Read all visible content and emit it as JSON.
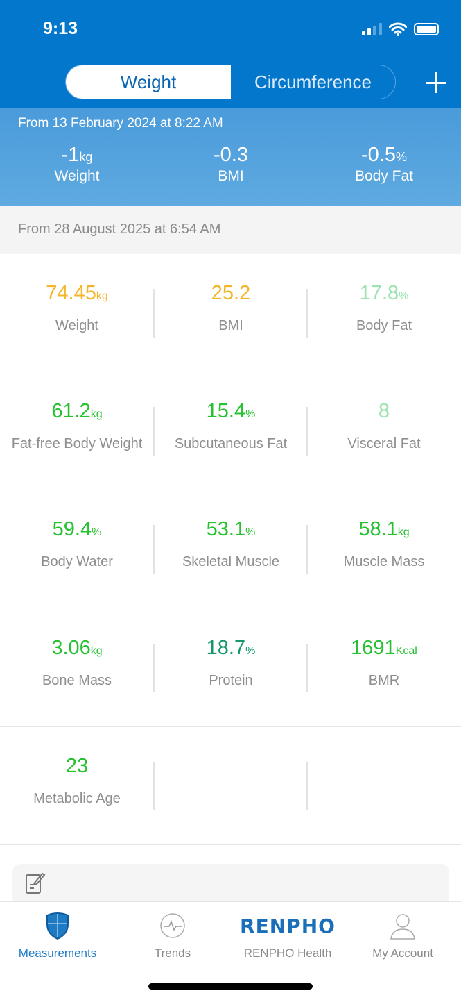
{
  "status_bar": {
    "time": "9:13",
    "signal_bars": 2,
    "battery": "full"
  },
  "header": {
    "segments": [
      {
        "label": "Weight",
        "selected": true
      },
      {
        "label": "Circumference",
        "selected": false
      }
    ],
    "add_icon": "plus-icon"
  },
  "summary": {
    "from": "From 13 February 2024 at 8:22 AM",
    "items": [
      {
        "value": "-1",
        "unit": "kg",
        "label": "Weight"
      },
      {
        "value": "-0.3",
        "unit": "",
        "label": "BMI"
      },
      {
        "value": "-0.5",
        "unit": "%",
        "label": "Body Fat"
      }
    ]
  },
  "since": "From 28 August 2025 at 6:54 AM",
  "colors": {
    "header": "#0277CB",
    "orange": "#F4B628",
    "light_green": "#9CE3B0",
    "green": "#25C130",
    "teal": "#16976A"
  },
  "metrics": [
    {
      "value": "74.45",
      "unit": "kg",
      "label": "Weight",
      "color": "#F4B628"
    },
    {
      "value": "25.2",
      "unit": "",
      "label": "BMI",
      "color": "#F4B628"
    },
    {
      "value": "17.8",
      "unit": "%",
      "label": "Body Fat",
      "color": "#9CE3B0"
    },
    {
      "value": "61.2",
      "unit": "kg",
      "label": "Fat-free Body Weight",
      "color": "#25C130"
    },
    {
      "value": "15.4",
      "unit": "%",
      "label": "Subcutaneous Fat",
      "color": "#25C130"
    },
    {
      "value": "8",
      "unit": "",
      "label": "Visceral Fat",
      "color": "#9CE3B0"
    },
    {
      "value": "59.4",
      "unit": "%",
      "label": "Body Water",
      "color": "#25C130"
    },
    {
      "value": "53.1",
      "unit": "%",
      "label": "Skeletal Muscle",
      "color": "#25C130"
    },
    {
      "value": "58.1",
      "unit": "kg",
      "label": "Muscle Mass",
      "color": "#25C130"
    },
    {
      "value": "3.06",
      "unit": "kg",
      "label": "Bone Mass",
      "color": "#25C130"
    },
    {
      "value": "18.7",
      "unit": "%",
      "label": "Protein",
      "color": "#16976A"
    },
    {
      "value": "1691",
      "unit": "Kcal",
      "label": "BMR",
      "color": "#25C130"
    },
    {
      "value": "23",
      "unit": "",
      "label": "Metabolic Age",
      "color": "#25C130"
    }
  ],
  "note_icon": "note-edit-icon",
  "tabbar": {
    "items": [
      {
        "label": "Measurements",
        "icon": "shield-icon",
        "active": true
      },
      {
        "label": "Trends",
        "icon": "pulse-icon"
      },
      {
        "label": "RENPHO Health",
        "logo": "RENPHO"
      },
      {
        "label": "My Account",
        "icon": "user-icon"
      }
    ]
  }
}
